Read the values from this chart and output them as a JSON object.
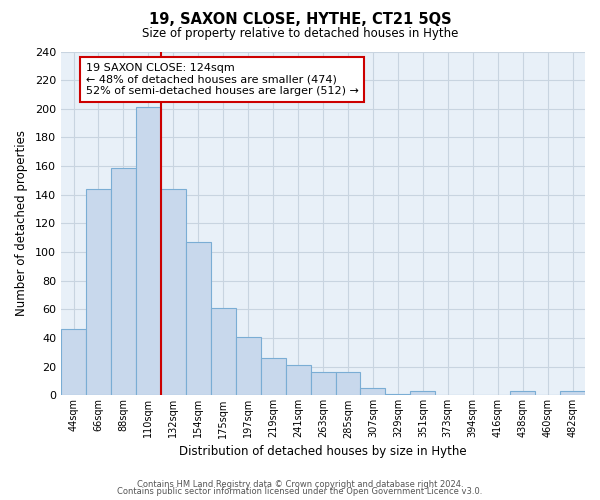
{
  "title": "19, SAXON CLOSE, HYTHE, CT21 5QS",
  "subtitle": "Size of property relative to detached houses in Hythe",
  "xlabel": "Distribution of detached houses by size in Hythe",
  "ylabel": "Number of detached properties",
  "bar_labels": [
    "44sqm",
    "66sqm",
    "88sqm",
    "110sqm",
    "132sqm",
    "154sqm",
    "175sqm",
    "197sqm",
    "219sqm",
    "241sqm",
    "263sqm",
    "285sqm",
    "307sqm",
    "329sqm",
    "351sqm",
    "373sqm",
    "394sqm",
    "416sqm",
    "438sqm",
    "460sqm",
    "482sqm"
  ],
  "bar_values": [
    46,
    144,
    159,
    201,
    144,
    107,
    61,
    41,
    26,
    21,
    16,
    16,
    5,
    1,
    3,
    0,
    0,
    0,
    3,
    0,
    3
  ],
  "bar_color": "#c8d8ec",
  "bar_edge_color": "#7aadd4",
  "highlight_index": 4,
  "highlight_color": "#cc0000",
  "annotation_text": "19 SAXON CLOSE: 124sqm\n← 48% of detached houses are smaller (474)\n52% of semi-detached houses are larger (512) →",
  "annotation_box_color": "#ffffff",
  "annotation_box_edge_color": "#cc0000",
  "ylim": [
    0,
    240
  ],
  "yticks": [
    0,
    20,
    40,
    60,
    80,
    100,
    120,
    140,
    160,
    180,
    200,
    220,
    240
  ],
  "footer_line1": "Contains HM Land Registry data © Crown copyright and database right 2024.",
  "footer_line2": "Contains public sector information licensed under the Open Government Licence v3.0.",
  "background_color": "#ffffff",
  "grid_color": "#c8d4e0"
}
